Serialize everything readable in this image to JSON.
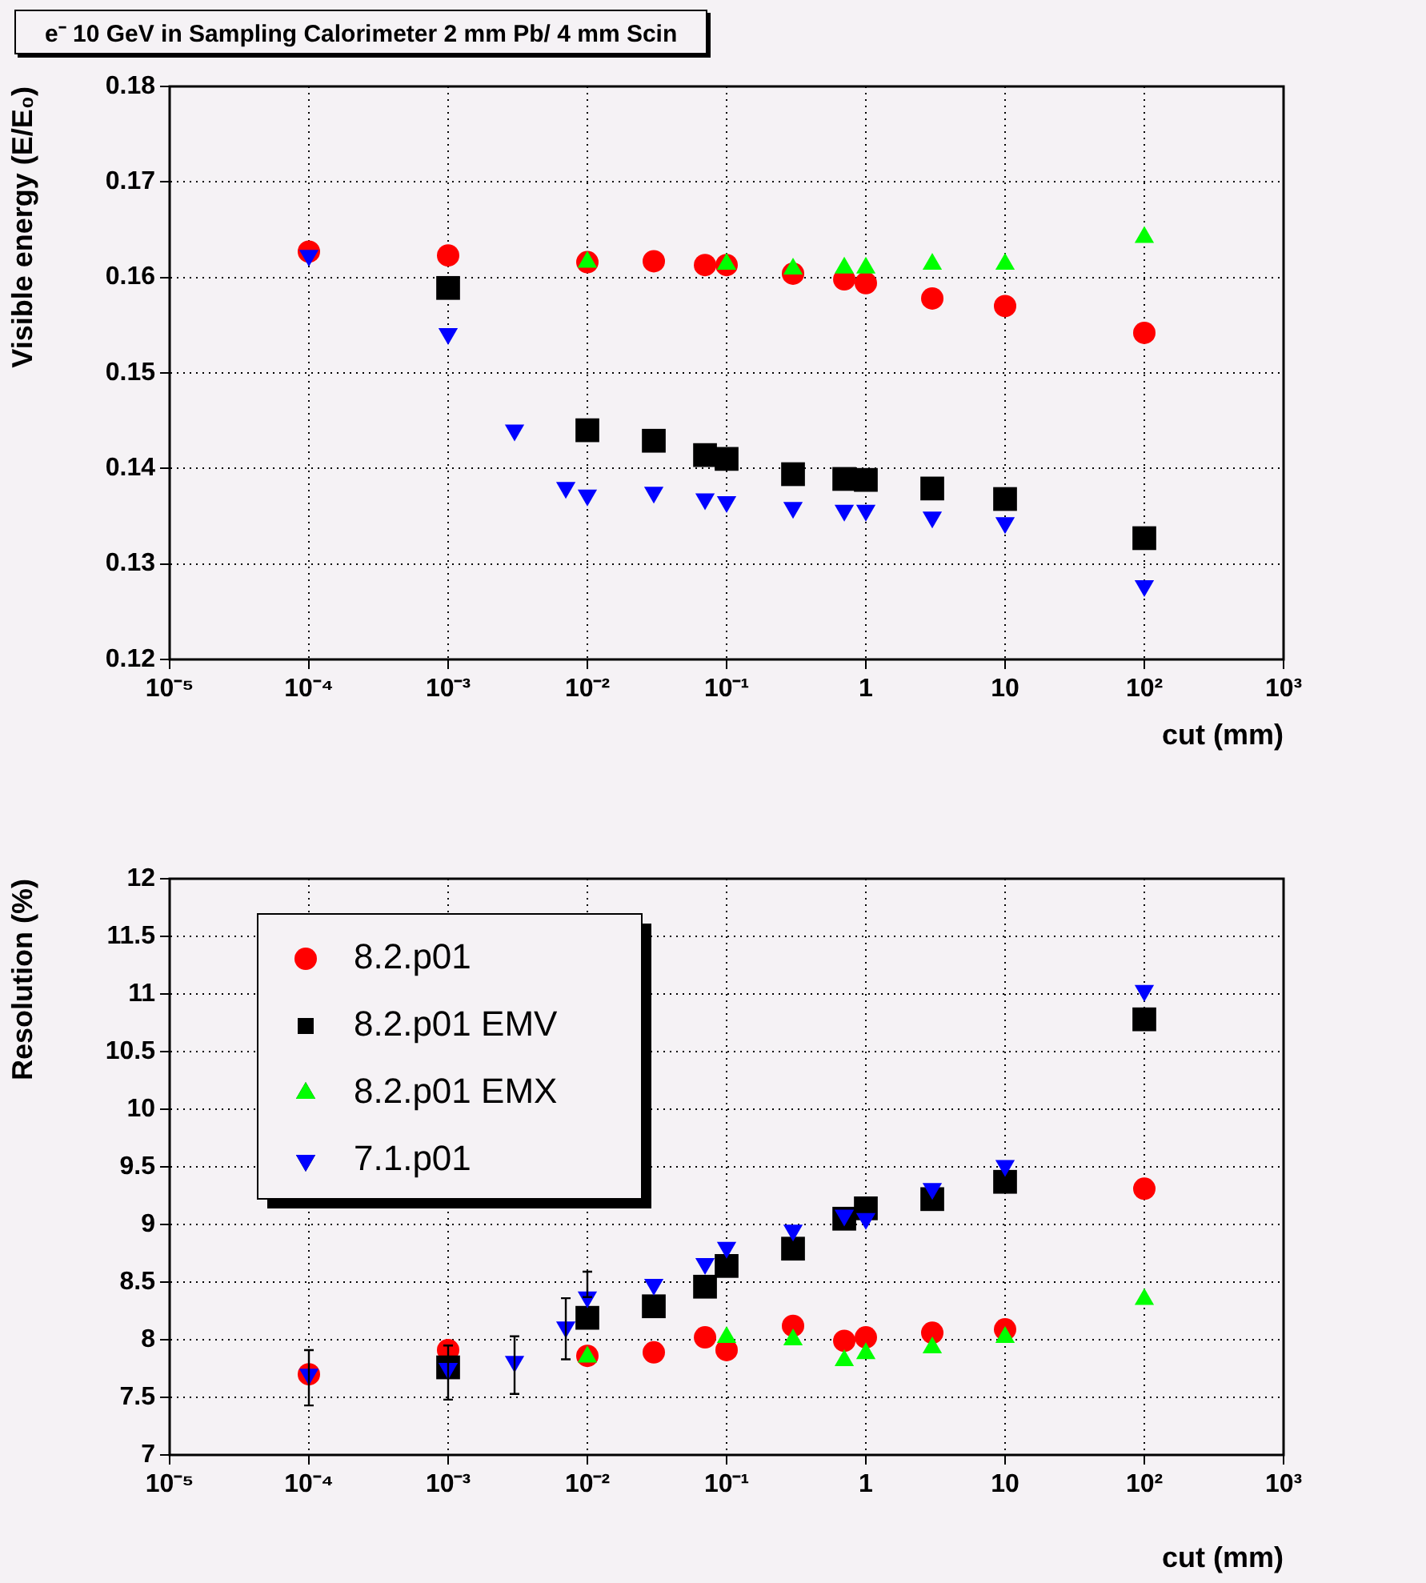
{
  "chart_data": [
    {
      "type": "scatter",
      "title": "e⁻ 10 GeV in Sampling Calorimeter 2 mm Pb/ 4 mm Scin",
      "xlabel": "cut (mm)",
      "ylabel": "Visible energy (E/E₀)",
      "log": "x",
      "grid": true,
      "legend": false,
      "x": [
        0.0001,
        0.001,
        0.003,
        0.007,
        0.01,
        0.03,
        0.07,
        0.1,
        0.3,
        0.7,
        1,
        3,
        10,
        100
      ],
      "xlim": [
        1e-05,
        1000
      ],
      "xticks": [
        {
          "value": 1e-05,
          "label": "10⁻⁵"
        },
        {
          "value": 0.0001,
          "label": "10⁻⁴"
        },
        {
          "value": 0.001,
          "label": "10⁻³"
        },
        {
          "value": 0.01,
          "label": "10⁻²"
        },
        {
          "value": 0.1,
          "label": "10⁻¹"
        },
        {
          "value": 1,
          "label": "1"
        },
        {
          "value": 10,
          "label": "10"
        },
        {
          "value": 100,
          "label": "10²"
        },
        {
          "value": 1000,
          "label": "10³"
        }
      ],
      "ylim": [
        0.12,
        0.18
      ],
      "yticks": [
        0.12,
        0.13,
        0.14,
        0.15,
        0.16,
        0.17,
        0.18
      ],
      "series": [
        {
          "color": "#ff0000",
          "marker": "circle",
          "values": [
            0.1627,
            0.1623,
            null,
            null,
            0.1616,
            0.1617,
            0.1613,
            0.1613,
            0.1604,
            0.1598,
            0.1594,
            0.1578,
            0.157,
            0.1542
          ]
        },
        {
          "color": "#000000",
          "marker": "square",
          "values": [
            null,
            0.1589,
            null,
            null,
            0.144,
            0.1429,
            0.1414,
            0.141,
            0.1394,
            0.1389,
            0.1388,
            0.1379,
            0.1368,
            0.1327
          ]
        },
        {
          "color": "#00ff00",
          "marker": "triangle",
          "values": [
            null,
            null,
            null,
            null,
            0.1616,
            null,
            null,
            0.1614,
            0.1609,
            0.161,
            0.161,
            0.1614,
            0.1614,
            0.1642
          ]
        },
        {
          "color": "#0000ff",
          "marker": "triangle-down",
          "values": [
            0.1623,
            0.1541,
            0.144,
            0.138,
            0.1372,
            0.1375,
            0.1368,
            0.1365,
            0.1359,
            0.1356,
            0.1356,
            0.1349,
            0.1343,
            0.1277
          ]
        }
      ]
    },
    {
      "type": "scatter",
      "xlabel": "cut (mm)",
      "ylabel": "Resolution (%)",
      "log": "x",
      "grid": true,
      "legend": "top left",
      "x": [
        0.0001,
        0.001,
        0.003,
        0.007,
        0.01,
        0.03,
        0.07,
        0.1,
        0.3,
        0.7,
        1,
        3,
        10,
        100
      ],
      "xlim": [
        1e-05,
        1000
      ],
      "xticks": [
        {
          "value": 1e-05,
          "label": "10⁻⁵"
        },
        {
          "value": 0.0001,
          "label": "10⁻⁴"
        },
        {
          "value": 0.001,
          "label": "10⁻³"
        },
        {
          "value": 0.01,
          "label": "10⁻²"
        },
        {
          "value": 0.1,
          "label": "10⁻¹"
        },
        {
          "value": 1,
          "label": "1"
        },
        {
          "value": 10,
          "label": "10"
        },
        {
          "value": 100,
          "label": "10²"
        },
        {
          "value": 1000,
          "label": "10³"
        }
      ],
      "ylim": [
        7,
        12
      ],
      "yticks": [
        7,
        7.5,
        8,
        8.5,
        9,
        9.5,
        10,
        10.5,
        11,
        11.5,
        12
      ],
      "series": [
        {
          "name": "8.2.p01",
          "color": "#ff0000",
          "marker": "circle",
          "values": [
            7.7,
            7.91,
            null,
            null,
            7.86,
            7.89,
            8.02,
            7.91,
            8.12,
            7.99,
            8.02,
            8.06,
            8.09,
            9.31
          ]
        },
        {
          "name": "8.2.p01 EMV",
          "color": "#000000",
          "marker": "square",
          "values": [
            null,
            7.76,
            null,
            null,
            8.19,
            8.29,
            8.46,
            8.64,
            8.79,
            9.05,
            9.14,
            9.22,
            9.37,
            10.78
          ]
        },
        {
          "name": "8.2.p01 EMX",
          "color": "#00ff00",
          "marker": "triangle",
          "values": [
            null,
            null,
            null,
            null,
            7.85,
            null,
            null,
            8.02,
            8,
            7.82,
            7.88,
            7.93,
            8.02,
            8.35
          ]
        },
        {
          "name": "7.1.p01",
          "color": "#0000ff",
          "marker": "triangle-down",
          "values": [
            7.7,
            7.75,
            7.81,
            8.11,
            8.37,
            8.48,
            8.66,
            8.8,
            8.95,
            9.08,
            9.05,
            9.31,
            9.51,
            11.03
          ],
          "errors": [
            [
              7.43,
              7.91
            ],
            [
              7.48,
              7.95
            ],
            [
              7.53,
              8.03
            ],
            [
              7.83,
              8.36
            ],
            [
              8.37,
              8.59
            ],
            null,
            null,
            null,
            null,
            null,
            null,
            null,
            null,
            null
          ]
        }
      ]
    }
  ]
}
